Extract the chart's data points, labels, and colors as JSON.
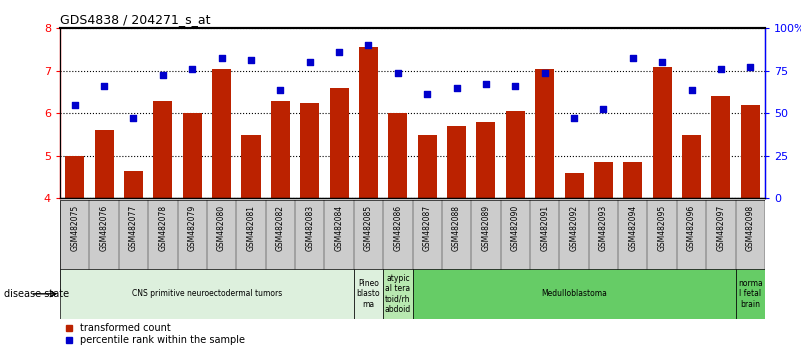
{
  "title": "GDS4838 / 204271_s_at",
  "samples": [
    "GSM482075",
    "GSM482076",
    "GSM482077",
    "GSM482078",
    "GSM482079",
    "GSM482080",
    "GSM482081",
    "GSM482082",
    "GSM482083",
    "GSM482084",
    "GSM482085",
    "GSM482086",
    "GSM482087",
    "GSM482088",
    "GSM482089",
    "GSM482090",
    "GSM482091",
    "GSM482092",
    "GSM482093",
    "GSM482094",
    "GSM482095",
    "GSM482096",
    "GSM482097",
    "GSM482098"
  ],
  "bar_values": [
    5.0,
    5.6,
    4.65,
    6.3,
    6.0,
    7.05,
    5.5,
    6.3,
    6.25,
    6.6,
    7.55,
    6.0,
    5.5,
    5.7,
    5.8,
    6.05,
    7.05,
    4.6,
    4.85,
    4.85,
    7.1,
    5.5,
    6.4,
    6.2
  ],
  "scatter_values": [
    6.2,
    6.65,
    5.9,
    6.9,
    7.05,
    7.3,
    7.25,
    6.55,
    7.2,
    7.45,
    7.6,
    6.95,
    6.45,
    6.6,
    6.7,
    6.65,
    6.95,
    5.9,
    6.1,
    7.3,
    7.2,
    6.55,
    7.05,
    7.1
  ],
  "bar_color": "#bb2200",
  "scatter_color": "#0000cc",
  "ymin": 4,
  "ymax": 8,
  "yticks_left": [
    4,
    5,
    6,
    7,
    8
  ],
  "yticks_right_labels": [
    "0",
    "25",
    "50",
    "75",
    "100%"
  ],
  "disease_groups": [
    {
      "label": "CNS primitive neuroectodermal tumors",
      "start": 0,
      "end": 10,
      "color": "#ddf0dd"
    },
    {
      "label": "Pineo\nblasto\nma",
      "start": 10,
      "end": 11,
      "color": "#ddf0dd"
    },
    {
      "label": "atypic\nal tera\ntoid/rh\nabdoid",
      "start": 11,
      "end": 12,
      "color": "#b8e8b0"
    },
    {
      "label": "Medulloblastoma",
      "start": 12,
      "end": 23,
      "color": "#66cc66"
    },
    {
      "label": "norma\nl fetal\nbrain",
      "start": 23,
      "end": 24,
      "color": "#66cc66"
    }
  ],
  "xlabel_disease_state": "disease state"
}
